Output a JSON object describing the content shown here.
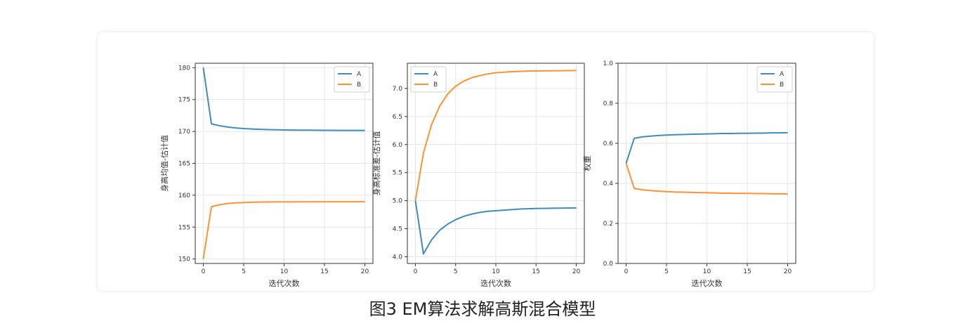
{
  "caption": "图3 EM算法求解高斯混合模型",
  "colors": {
    "A": "#1f77b4",
    "B": "#ff7f0e",
    "grid": "#e6e6e6",
    "axis": "#333333"
  },
  "chart_data": [
    {
      "type": "line",
      "xlabel": "迭代次数",
      "ylabel": "身高均值-估计值",
      "xlim": [
        -1,
        21
      ],
      "ylim": [
        149.3,
        180.7
      ],
      "xticks": [
        0,
        5,
        10,
        15,
        20
      ],
      "yticks": [
        150,
        155,
        160,
        165,
        170,
        175,
        180
      ],
      "ytick_labels": [
        "150",
        "155",
        "160",
        "165",
        "170",
        "175",
        "180"
      ],
      "legend": "top-right",
      "x": [
        0,
        1,
        2,
        3,
        4,
        5,
        6,
        7,
        8,
        9,
        10,
        11,
        12,
        13,
        14,
        15,
        16,
        17,
        18,
        19,
        20
      ],
      "series": [
        {
          "name": "A",
          "color": "#1f77b4",
          "values": [
            180.0,
            171.2,
            170.9,
            170.7,
            170.55,
            170.45,
            170.38,
            170.33,
            170.29,
            170.26,
            170.24,
            170.22,
            170.21,
            170.2,
            170.19,
            170.18,
            170.18,
            170.17,
            170.17,
            170.17,
            170.16
          ]
        },
        {
          "name": "B",
          "color": "#ff7f0e",
          "values": [
            150.0,
            158.2,
            158.5,
            158.7,
            158.8,
            158.85,
            158.9,
            158.92,
            158.94,
            158.95,
            158.96,
            158.96,
            158.97,
            158.97,
            158.97,
            158.97,
            158.98,
            158.98,
            158.98,
            158.98,
            158.98
          ]
        }
      ]
    },
    {
      "type": "line",
      "xlabel": "迭代次数",
      "ylabel": "身高标准差-估计值",
      "xlim": [
        -1,
        21
      ],
      "ylim": [
        3.88,
        7.45
      ],
      "xticks": [
        0,
        5,
        10,
        15,
        20
      ],
      "yticks": [
        4.0,
        4.5,
        5.0,
        5.5,
        6.0,
        6.5,
        7.0
      ],
      "ytick_labels": [
        "4.0",
        "4.5",
        "5.0",
        "5.5",
        "6.0",
        "6.5",
        "7.0"
      ],
      "legend": "top-left",
      "x": [
        0,
        1,
        2,
        3,
        4,
        5,
        6,
        7,
        8,
        9,
        10,
        11,
        12,
        13,
        14,
        15,
        16,
        17,
        18,
        19,
        20
      ],
      "series": [
        {
          "name": "A",
          "color": "#1f77b4",
          "values": [
            5.0,
            4.05,
            4.3,
            4.47,
            4.58,
            4.66,
            4.72,
            4.76,
            4.79,
            4.81,
            4.82,
            4.83,
            4.84,
            4.85,
            4.855,
            4.86,
            4.862,
            4.865,
            4.867,
            4.868,
            4.87
          ]
        },
        {
          "name": "B",
          "color": "#ff7f0e",
          "values": [
            5.0,
            5.85,
            6.35,
            6.68,
            6.9,
            7.04,
            7.13,
            7.19,
            7.23,
            7.26,
            7.28,
            7.29,
            7.3,
            7.305,
            7.31,
            7.312,
            7.314,
            7.316,
            7.317,
            7.318,
            7.32
          ]
        }
      ]
    },
    {
      "type": "line",
      "xlabel": "迭代次数",
      "ylabel": "权重",
      "xlim": [
        -1,
        21
      ],
      "ylim": [
        0.0,
        1.0
      ],
      "xticks": [
        0,
        5,
        10,
        15,
        20
      ],
      "yticks": [
        0.0,
        0.2,
        0.4,
        0.6,
        0.8,
        1.0
      ],
      "ytick_labels": [
        "0.0",
        "0.2",
        "0.4",
        "0.6",
        "0.8",
        "1.0"
      ],
      "legend": "top-right",
      "x": [
        0,
        1,
        2,
        3,
        4,
        5,
        6,
        7,
        8,
        9,
        10,
        11,
        12,
        13,
        14,
        15,
        16,
        17,
        18,
        19,
        20
      ],
      "series": [
        {
          "name": "A",
          "color": "#1f77b4",
          "values": [
            0.5,
            0.625,
            0.632,
            0.636,
            0.639,
            0.641,
            0.643,
            0.644,
            0.645,
            0.646,
            0.647,
            0.648,
            0.649,
            0.649,
            0.65,
            0.65,
            0.651,
            0.651,
            0.652,
            0.652,
            0.653
          ]
        },
        {
          "name": "B",
          "color": "#ff7f0e",
          "values": [
            0.5,
            0.375,
            0.368,
            0.364,
            0.361,
            0.359,
            0.357,
            0.356,
            0.355,
            0.354,
            0.353,
            0.352,
            0.351,
            0.351,
            0.35,
            0.35,
            0.349,
            0.349,
            0.348,
            0.348,
            0.347
          ]
        }
      ]
    }
  ]
}
